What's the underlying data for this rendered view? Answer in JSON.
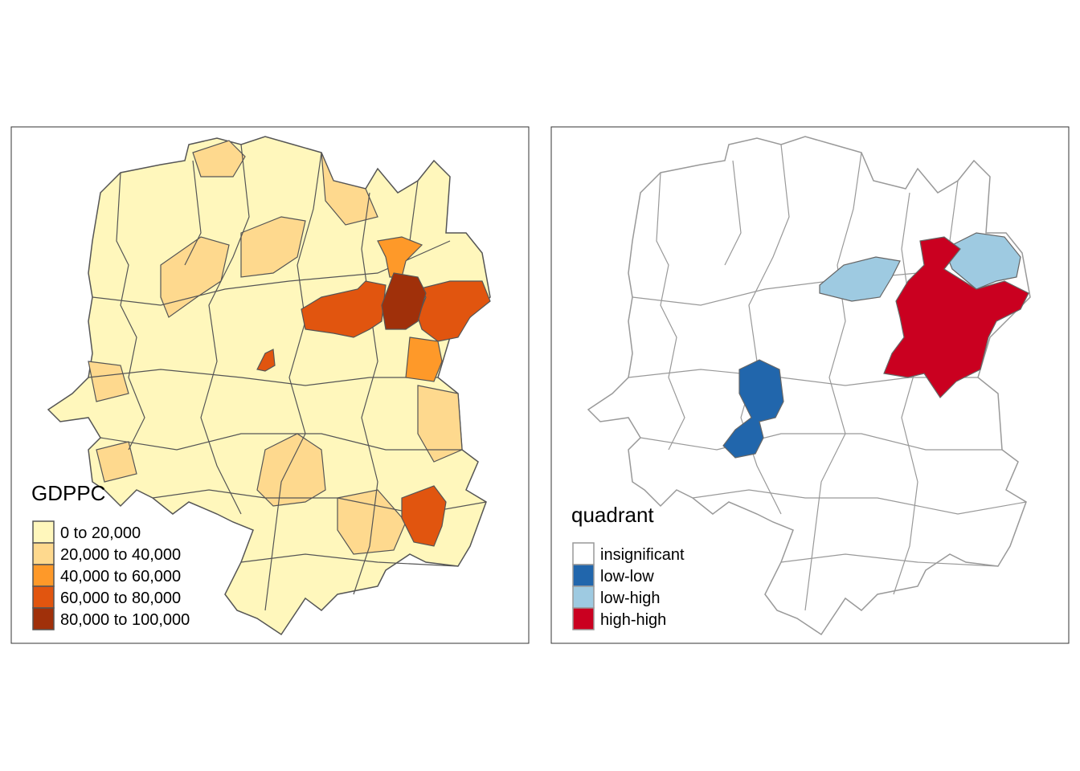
{
  "maps": [
    {
      "legend_title": "GDPPC",
      "legend": [
        {
          "label": "0 to 20,000",
          "color": "#FFF7BC"
        },
        {
          "label": "20,000 to 40,000",
          "color": "#FED98E"
        },
        {
          "label": "40,000 to 60,000",
          "color": "#FE9929"
        },
        {
          "label": "60,000 to 80,000",
          "color": "#E1550F"
        },
        {
          "label": "80,000 to 100,000",
          "color": "#A0300A"
        }
      ],
      "border_color": "#555555"
    },
    {
      "legend_title": "quadrant",
      "legend": [
        {
          "label": "insignificant",
          "color": "#FFFFFF"
        },
        {
          "label": "low-low",
          "color": "#2166AC"
        },
        {
          "label": "low-high",
          "color": "#9ECAE1"
        },
        {
          "label": "high-high",
          "color": "#CA0020"
        }
      ],
      "border_color": "#999999"
    }
  ]
}
